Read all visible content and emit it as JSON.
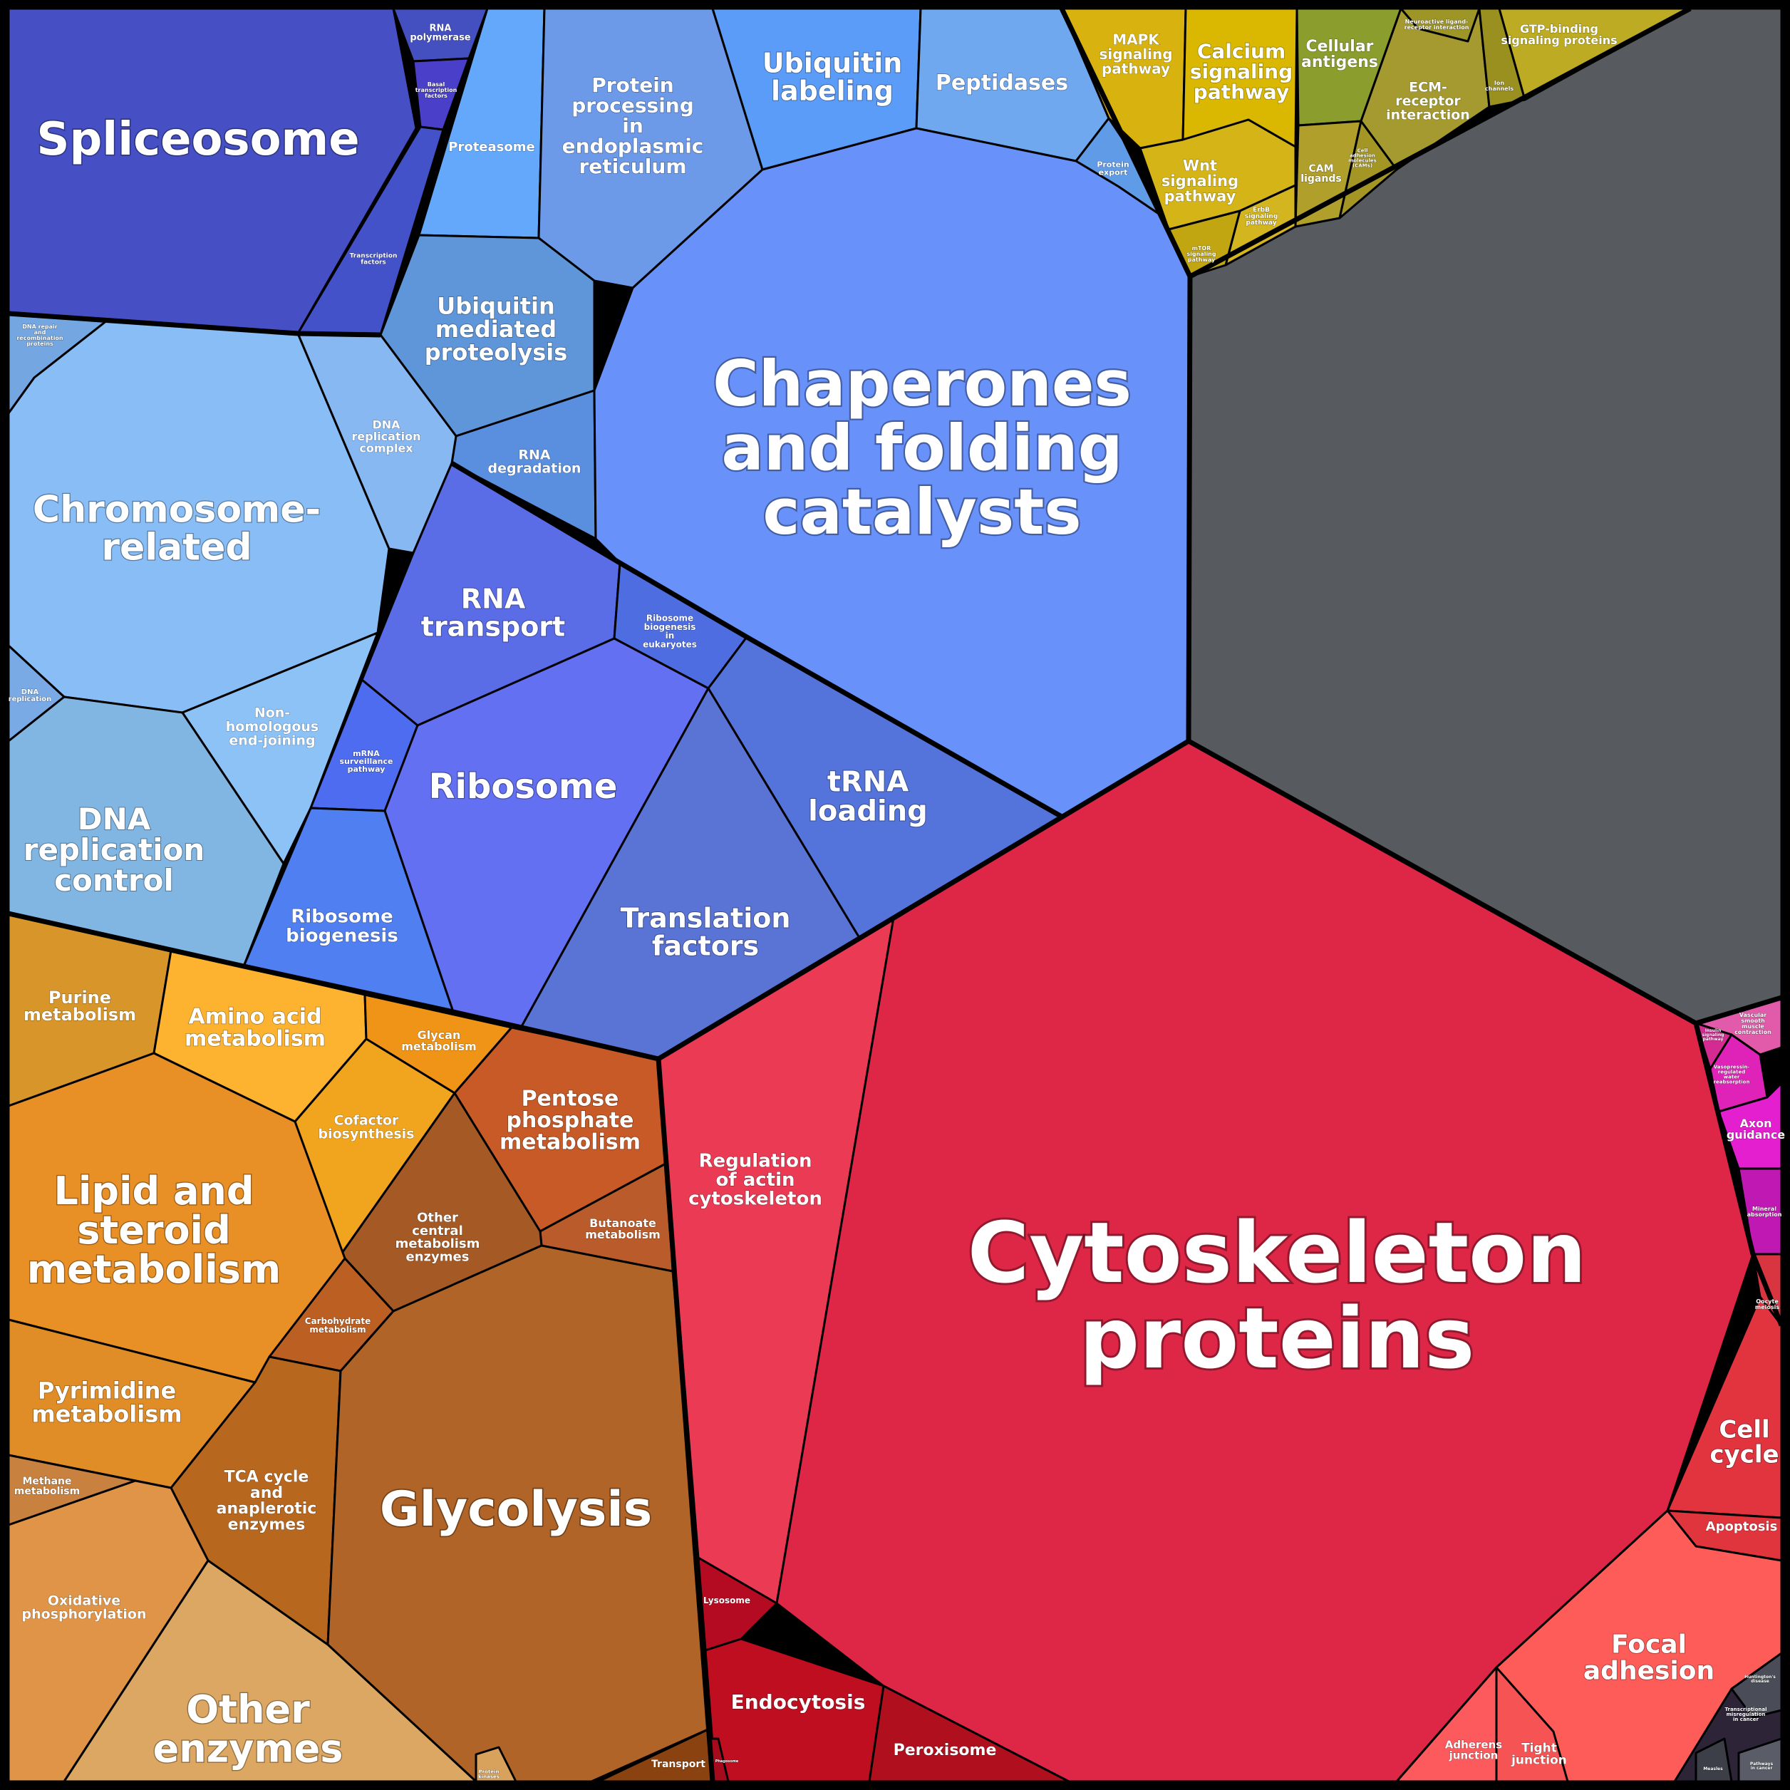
{
  "colors": {
    "frame": "#000000",
    "unassigned": "#575b60",
    "genetic_information_processing": "#4a55c6",
    "dna_related": "#86bff0",
    "protein_processing": "#6a93f7",
    "translation": "#5a6ce6",
    "metabolism": "#e0902a",
    "cytoskeleton": "#de2747",
    "signaling": "#c5ab12",
    "cellular_processes_other": "#dc34b6",
    "organismal_systems": "#3a3f4c"
  },
  "cells": [
    {
      "id": "spliceosome",
      "label": "Spliceosome",
      "color": "#4650c4"
    },
    {
      "id": "rna-polymerase",
      "label": "RNA polymerase",
      "color": "#4450c0"
    },
    {
      "id": "basal-transcription-factors",
      "label": "Basal transcription factors",
      "color": "#4a3fc9"
    },
    {
      "id": "transcription-factors",
      "label": "Transcription factors",
      "color": "#4352c8"
    },
    {
      "id": "proteasome",
      "label": "Proteasome",
      "color": "#64a8fb"
    },
    {
      "id": "protein-processing-er",
      "label": "Protein processing in endoplasmic reticulum",
      "color": "#6d9ae8"
    },
    {
      "id": "ubiquitin-labeling",
      "label": "Ubiquitin labeling",
      "color": "#5b9cf8"
    },
    {
      "id": "peptidases",
      "label": "Peptidases",
      "color": "#70a8f0"
    },
    {
      "id": "protein-export",
      "label": "Protein export",
      "color": "#5f9be6"
    },
    {
      "id": "ubiquitin-mediated-proteolysis",
      "label": "Ubiquitin mediated proteolysis",
      "color": "#5f96d9"
    },
    {
      "id": "rna-degradation",
      "label": "RNA degradation",
      "color": "#5a8ede"
    },
    {
      "id": "chaperones",
      "label": "Chaperones and folding catalysts",
      "color": "#6891fa"
    },
    {
      "id": "dna-repair-recombination",
      "label": "DNA repair and recombination proteins",
      "color": "#74a6e2"
    },
    {
      "id": "chromosome-related",
      "label": "Chromosome-related",
      "color": "#89bdf6"
    },
    {
      "id": "dna-replication-complex",
      "label": "DNA replication complex",
      "color": "#88b8f2"
    },
    {
      "id": "dna-replication",
      "label": "DNA replication",
      "color": "#7aaae6"
    },
    {
      "id": "non-homologous-end-joining",
      "label": "Non-homologous end-joining",
      "color": "#8dc2f6"
    },
    {
      "id": "dna-replication-control",
      "label": "DNA replication control",
      "color": "#82b6e2"
    },
    {
      "id": "rna-transport",
      "label": "RNA transport",
      "color": "#5a6ce6"
    },
    {
      "id": "ribosome-biogenesis-eukaryotes",
      "label": "Ribosome biogenesis in eukaryotes",
      "color": "#4d6de0"
    },
    {
      "id": "mrna-surveillance",
      "label": "mRNA surveillance pathway",
      "color": "#4e6cef"
    },
    {
      "id": "ribosome",
      "label": "Ribosome",
      "color": "#6370f2"
    },
    {
      "id": "trna-loading",
      "label": "tRNA loading",
      "color": "#5474dc"
    },
    {
      "id": "ribosome-biogenesis",
      "label": "Ribosome biogenesis",
      "color": "#4f7ff0"
    },
    {
      "id": "translation-factors",
      "label": "Translation factors",
      "color": "#5a74d6"
    },
    {
      "id": "purine-metabolism",
      "label": "Purine metabolism",
      "color": "#d8962a"
    },
    {
      "id": "amino-acid-metabolism",
      "label": "Amino acid metabolism",
      "color": "#fdb32f"
    },
    {
      "id": "glycan-metabolism",
      "label": "Glycan metabolism",
      "color": "#ef9417"
    },
    {
      "id": "cofactor-biosynthesis",
      "label": "Cofactor biosynthesis",
      "color": "#f1a41e"
    },
    {
      "id": "pentose-phosphate",
      "label": "Pentose phosphate metabolism",
      "color": "#c75a27"
    },
    {
      "id": "butanoate-metabolism",
      "label": "Butanoate metabolism",
      "color": "#b95b2a"
    },
    {
      "id": "other-central-metabolism",
      "label": "Other central metabolism enzymes",
      "color": "#a55a26"
    },
    {
      "id": "lipid-steroid",
      "label": "Lipid and steroid metabolism",
      "color": "#e88f26"
    },
    {
      "id": "carbohydrate-metabolism",
      "label": "Carbohydrate metabolism",
      "color": "#bc5f22"
    },
    {
      "id": "pyrimidine-metabolism",
      "label": "Pyrimidine metabolism",
      "color": "#e08c27"
    },
    {
      "id": "methane-metabolism",
      "label": "Methane metabolism",
      "color": "#c98140"
    },
    {
      "id": "tca-cycle",
      "label": "TCA cycle and anaplerotic enzymes",
      "color": "#b8671f"
    },
    {
      "id": "glycolysis",
      "label": "Glycolysis",
      "color": "#b06428"
    },
    {
      "id": "oxidative-phosphorylation",
      "label": "Oxidative phosphorylation",
      "color": "#e09448"
    },
    {
      "id": "other-enzymes",
      "label": "Other enzymes",
      "color": "#dba763"
    },
    {
      "id": "protein-kinases",
      "label": "Protein kinases",
      "color": "#d8a25c"
    },
    {
      "id": "transport",
      "label": "Transport",
      "color": "#8a4310"
    },
    {
      "id": "regulation-actin",
      "label": "Regulation of actin cytoskeleton",
      "color": "#eb3a54"
    },
    {
      "id": "cytoskeleton-proteins",
      "label": "Cytoskeleton proteins",
      "color": "#de2747"
    },
    {
      "id": "lysosome",
      "label": "Lysosome",
      "color": "#b40b23"
    },
    {
      "id": "endocytosis",
      "label": "Endocytosis",
      "color": "#bf0e1f"
    },
    {
      "id": "peroxisome",
      "label": "Peroxisome",
      "color": "#b00f1e"
    },
    {
      "id": "phagosome",
      "label": "Phagosome",
      "color": "#a50a1d"
    },
    {
      "id": "cell-cycle",
      "label": "Cell cycle",
      "color": "#e2343e"
    },
    {
      "id": "apoptosis",
      "label": "Apoptosis",
      "color": "#e0353c"
    },
    {
      "id": "focal-adhesion",
      "label": "Focal adhesion",
      "color": "#fe5c58"
    },
    {
      "id": "adherens-junction",
      "label": "Adherens junction",
      "color": "#fd5a5e"
    },
    {
      "id": "tight-junction",
      "label": "Tight junction",
      "color": "#f65454"
    },
    {
      "id": "mapk",
      "label": "MAPK signaling pathway",
      "color": "#d8b20e"
    },
    {
      "id": "calcium",
      "label": "Calcium signaling pathway",
      "color": "#dab700"
    },
    {
      "id": "wnt",
      "label": "Wnt signaling pathway",
      "color": "#d5b418"
    },
    {
      "id": "erbb",
      "label": "ErbB signaling pathway",
      "color": "#d3b520"
    },
    {
      "id": "mtor",
      "label": "mTOR signaling pathway",
      "color": "#c2a611"
    },
    {
      "id": "cellular-antigens",
      "label": "Cellular antigens",
      "color": "#8b9d2c"
    },
    {
      "id": "ecm-receptor",
      "label": "ECM-receptor interaction",
      "color": "#a59a2f"
    },
    {
      "id": "cam-ligands",
      "label": "CAM ligands",
      "color": "#b19f2c"
    },
    {
      "id": "cell-adhesion-molecules",
      "label": "Cell adhesion molecules (CAMs)",
      "color": "#a49625"
    },
    {
      "id": "gtp-binding",
      "label": "GTP-binding signaling proteins",
      "color": "#bdac23"
    },
    {
      "id": "ion-channels",
      "label": "Ion channels",
      "color": "#9a901f"
    },
    {
      "id": "neuroactive-ligand",
      "label": "Neuroactive ligand-receptor interaction",
      "color": "#9e9527"
    },
    {
      "id": "vascular-smooth-muscle",
      "label": "Vascular smooth muscle contraction",
      "color": "#e25bab"
    },
    {
      "id": "insulin-signaling",
      "label": "Insulin signaling pathway",
      "color": "#d42b93"
    },
    {
      "id": "vasopressin",
      "label": "Vasopressin-regulated water reabsorption",
      "color": "#e023b8"
    },
    {
      "id": "axon-guidance",
      "label": "Axon guidance",
      "color": "#e31fd0"
    },
    {
      "id": "mineral-absorption",
      "label": "Mineral absorption",
      "color": "#c018b2"
    },
    {
      "id": "oocyte-meiosis",
      "label": "Oocyte meiosis",
      "color": "#d83540"
    },
    {
      "id": "transcriptional-misregulation",
      "label": "Transcriptional misregulation in cancer",
      "color": "#2d2438"
    },
    {
      "id": "huntington",
      "label": "Huntington's disease",
      "color": "#4a4d58"
    },
    {
      "id": "measles",
      "label": "Measles",
      "color": "#3c3f48"
    },
    {
      "id": "pathways-in-cancer",
      "label": "Pathways in cancer",
      "color": "#5a5d68"
    },
    {
      "id": "unassigned",
      "label": "",
      "color": "#575b60"
    }
  ]
}
